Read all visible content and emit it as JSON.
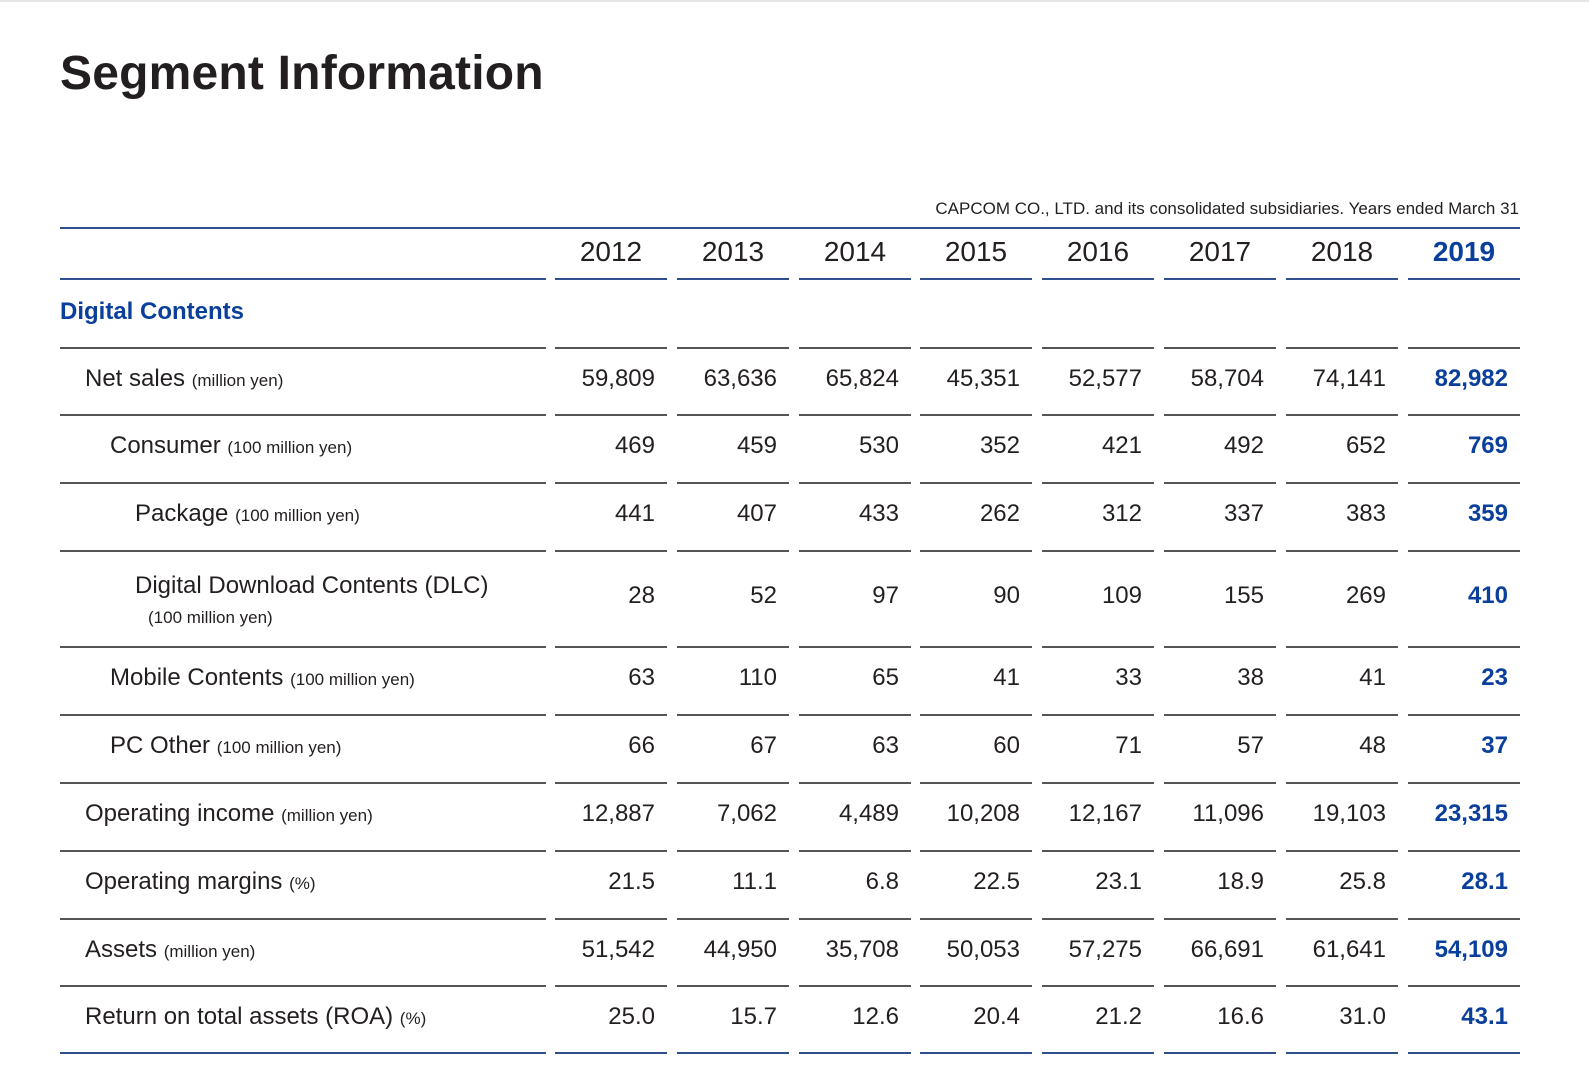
{
  "title": "Segment Information",
  "note": "CAPCOM CO., LTD. and its consolidated subsidiaries. Years ended March 31",
  "years": [
    "2012",
    "2013",
    "2014",
    "2015",
    "2016",
    "2017",
    "2018",
    "2019"
  ],
  "section": "Digital Contents",
  "rows": [
    {
      "label": "Net sales",
      "unit": "(million yen)",
      "values": [
        "59,809",
        "63,636",
        "65,824",
        "45,351",
        "52,577",
        "58,704",
        "74,141",
        "82,982"
      ]
    },
    {
      "label": "Consumer",
      "unit": "(100 million yen)",
      "values": [
        "469",
        "459",
        "530",
        "352",
        "421",
        "492",
        "652",
        "769"
      ]
    },
    {
      "label": "Package",
      "unit": "(100 million yen)",
      "values": [
        "441",
        "407",
        "433",
        "262",
        "312",
        "337",
        "383",
        "359"
      ]
    },
    {
      "label": "Digital Download Contents (DLC)",
      "unit": "(100 million yen)",
      "values": [
        "28",
        "52",
        "97",
        "90",
        "109",
        "155",
        "269",
        "410"
      ]
    },
    {
      "label": "Mobile Contents",
      "unit": "(100 million yen)",
      "values": [
        "63",
        "110",
        "65",
        "41",
        "33",
        "38",
        "41",
        "23"
      ]
    },
    {
      "label": "PC Other",
      "unit": "(100 million yen)",
      "values": [
        "66",
        "67",
        "63",
        "60",
        "71",
        "57",
        "48",
        "37"
      ]
    },
    {
      "label": "Operating income",
      "unit": "(million yen)",
      "values": [
        "12,887",
        "7,062",
        "4,489",
        "10,208",
        "12,167",
        "11,096",
        "19,103",
        "23,315"
      ]
    },
    {
      "label": "Operating margins",
      "unit": "(%)",
      "values": [
        "21.5",
        "11.1",
        "6.8",
        "22.5",
        "23.1",
        "18.9",
        "25.8",
        "28.1"
      ]
    },
    {
      "label": "Assets",
      "unit": "(million yen)",
      "values": [
        "51,542",
        "44,950",
        "35,708",
        "50,053",
        "57,275",
        "66,691",
        "61,641",
        "54,109"
      ]
    },
    {
      "label": "Return on total assets (ROA)",
      "unit": "(%)",
      "values": [
        "25.0",
        "15.7",
        "12.6",
        "20.4",
        "21.2",
        "16.6",
        "31.0",
        "43.1"
      ]
    }
  ],
  "colors": {
    "accent": "#0a3f9b",
    "rule": "#2f4f8f",
    "text": "#231f20"
  }
}
